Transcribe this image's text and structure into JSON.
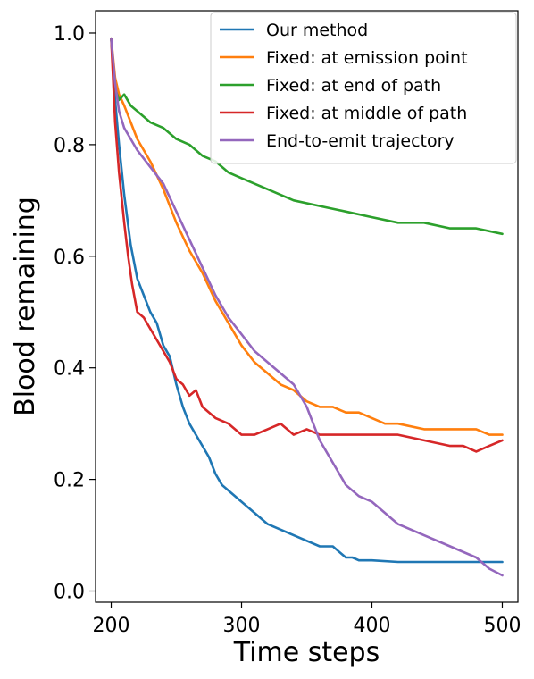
{
  "chart_data": {
    "type": "line",
    "xlabel": "Time steps",
    "ylabel": "Blood remaining",
    "xlim": [
      188,
      512
    ],
    "ylim": [
      -0.02,
      1.04
    ],
    "xticks": [
      200,
      300,
      400,
      500
    ],
    "yticks": [
      0.0,
      0.2,
      0.4,
      0.6,
      0.8,
      1.0
    ],
    "xtick_labels": [
      "200",
      "300",
      "400",
      "500"
    ],
    "ytick_labels": [
      "0.0",
      "0.2",
      "0.4",
      "0.6",
      "0.8",
      "1.0"
    ],
    "grid": false,
    "legend_position": "top-right",
    "series": [
      {
        "name": "Our method",
        "color": "#1f77b4",
        "x": [
          200,
          203,
          206,
          210,
          215,
          220,
          225,
          230,
          235,
          240,
          245,
          250,
          255,
          260,
          265,
          270,
          275,
          280,
          285,
          290,
          300,
          310,
          320,
          330,
          340,
          350,
          360,
          370,
          375,
          380,
          385,
          390,
          400,
          420,
          440,
          460,
          480,
          500
        ],
        "y": [
          0.99,
          0.88,
          0.8,
          0.71,
          0.62,
          0.56,
          0.53,
          0.5,
          0.48,
          0.44,
          0.42,
          0.37,
          0.33,
          0.3,
          0.28,
          0.26,
          0.24,
          0.21,
          0.19,
          0.18,
          0.16,
          0.14,
          0.12,
          0.11,
          0.1,
          0.09,
          0.08,
          0.08,
          0.07,
          0.06,
          0.06,
          0.055,
          0.055,
          0.052,
          0.052,
          0.052,
          0.052,
          0.052
        ]
      },
      {
        "name": "Fixed: at emission point",
        "color": "#ff7f0e",
        "x": [
          200,
          203,
          206,
          210,
          215,
          220,
          230,
          240,
          250,
          260,
          270,
          280,
          290,
          300,
          310,
          320,
          330,
          340,
          350,
          360,
          370,
          380,
          390,
          400,
          410,
          420,
          440,
          460,
          480,
          490,
          500
        ],
        "y": [
          0.99,
          0.92,
          0.89,
          0.87,
          0.84,
          0.81,
          0.77,
          0.72,
          0.66,
          0.61,
          0.57,
          0.52,
          0.48,
          0.44,
          0.41,
          0.39,
          0.37,
          0.36,
          0.34,
          0.33,
          0.33,
          0.32,
          0.32,
          0.31,
          0.3,
          0.3,
          0.29,
          0.29,
          0.29,
          0.28,
          0.28
        ]
      },
      {
        "name": "Fixed: at end of path",
        "color": "#2ca02c",
        "x": [
          200,
          203,
          206,
          210,
          215,
          220,
          230,
          240,
          250,
          260,
          270,
          280,
          290,
          300,
          320,
          340,
          360,
          380,
          400,
          420,
          440,
          460,
          480,
          500
        ],
        "y": [
          0.99,
          0.9,
          0.88,
          0.89,
          0.87,
          0.86,
          0.84,
          0.83,
          0.81,
          0.8,
          0.78,
          0.77,
          0.75,
          0.74,
          0.72,
          0.7,
          0.69,
          0.68,
          0.67,
          0.66,
          0.66,
          0.65,
          0.65,
          0.64
        ]
      },
      {
        "name": "Fixed: at middle of path",
        "color": "#d62728",
        "x": [
          200,
          203,
          206,
          210,
          213,
          216,
          220,
          225,
          230,
          235,
          240,
          245,
          250,
          255,
          260,
          265,
          270,
          280,
          290,
          300,
          310,
          320,
          330,
          340,
          350,
          360,
          380,
          400,
          420,
          440,
          460,
          470,
          480,
          490,
          500
        ],
        "y": [
          0.99,
          0.84,
          0.75,
          0.66,
          0.6,
          0.55,
          0.5,
          0.49,
          0.47,
          0.45,
          0.43,
          0.41,
          0.38,
          0.37,
          0.35,
          0.36,
          0.33,
          0.31,
          0.3,
          0.28,
          0.28,
          0.29,
          0.3,
          0.28,
          0.29,
          0.28,
          0.28,
          0.28,
          0.28,
          0.27,
          0.26,
          0.26,
          0.25,
          0.26,
          0.27
        ]
      },
      {
        "name": "End-to-emit trajectory",
        "color": "#9467bd",
        "x": [
          200,
          203,
          206,
          210,
          215,
          220,
          230,
          240,
          250,
          260,
          270,
          280,
          290,
          300,
          310,
          320,
          330,
          340,
          345,
          350,
          355,
          360,
          370,
          380,
          390,
          400,
          410,
          420,
          440,
          460,
          480,
          490,
          500
        ],
        "y": [
          0.99,
          0.91,
          0.86,
          0.83,
          0.81,
          0.79,
          0.76,
          0.73,
          0.68,
          0.63,
          0.58,
          0.53,
          0.49,
          0.46,
          0.43,
          0.41,
          0.39,
          0.37,
          0.35,
          0.33,
          0.3,
          0.27,
          0.23,
          0.19,
          0.17,
          0.16,
          0.14,
          0.12,
          0.1,
          0.08,
          0.06,
          0.04,
          0.028
        ]
      }
    ]
  }
}
